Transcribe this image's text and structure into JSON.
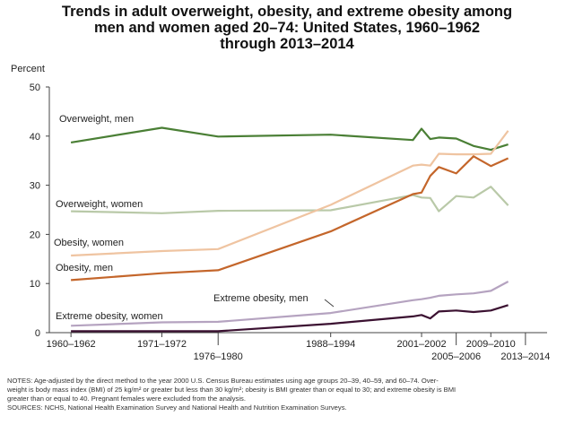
{
  "chart_data": {
    "type": "line",
    "title": [
      "Trends in adult overweight, obesity, and extreme obesity among",
      "men and women aged 20–74: United States, 1960–1962",
      "through 2013–2014"
    ],
    "ylabel": "Percent",
    "ylim": [
      0,
      50
    ],
    "yticks": [
      "0",
      "10",
      "20",
      "30",
      "40",
      "50"
    ],
    "grid": false,
    "x_labels": [
      {
        "label": "1960–1962",
        "x": 1961,
        "row": 0
      },
      {
        "label": "1971–1972",
        "x": 1971.5,
        "row": 0
      },
      {
        "label": "1976–1980",
        "x": 1978,
        "row": 1
      },
      {
        "label": "1988–1994",
        "x": 1991,
        "row": 0
      },
      {
        "label": "2001–2002",
        "x": 2001.5,
        "row": 0
      },
      {
        "label": "2005–2006",
        "x": 2005.5,
        "row": 1
      },
      {
        "label": "2009–2010",
        "x": 2009.5,
        "row": 0
      },
      {
        "label": "2013–2014",
        "x": 2013.5,
        "row": 1
      }
    ],
    "x": [
      1961,
      1971.5,
      1978,
      1991,
      2000.5,
      2001.5,
      2002.5,
      2003.5,
      2005.5,
      2007.5,
      2009.5,
      2011.5,
      2013.5
    ],
    "series": [
      {
        "name": "Overweight, men",
        "color": "#4a7f35",
        "values": [
          38.7,
          41.7,
          39.9,
          40.3,
          39.2,
          41.5,
          39.4,
          39.7,
          39.5,
          38.0,
          37.2,
          38.3,
          null
        ]
      },
      {
        "name": "Overweight, women",
        "color": "#b9c9a8",
        "values": [
          24.7,
          24.3,
          24.8,
          24.9,
          28.0,
          27.5,
          27.4,
          24.7,
          27.8,
          27.5,
          29.7,
          25.9,
          null
        ]
      },
      {
        "name": "Obesity, women",
        "color": "#efc4a1",
        "values": [
          15.7,
          16.6,
          17.0,
          26.0,
          34.0,
          34.2,
          34.0,
          36.4,
          36.3,
          36.3,
          36.4,
          41.1,
          null
        ]
      },
      {
        "name": "Obesity, men",
        "color": "#c4662b",
        "values": [
          10.7,
          12.1,
          12.7,
          20.6,
          28.2,
          28.5,
          31.9,
          33.7,
          32.4,
          35.9,
          33.9,
          35.5,
          null
        ]
      },
      {
        "name": "Extreme obesity, women",
        "color": "#b5a3c0",
        "values": [
          1.4,
          2.1,
          2.2,
          4.0,
          6.6,
          6.8,
          7.1,
          7.5,
          7.8,
          8.0,
          8.5,
          10.4,
          null
        ]
      },
      {
        "name": "Extreme obesity, men",
        "color": "#3b1131",
        "values": [
          0.3,
          0.3,
          0.3,
          1.8,
          3.3,
          3.6,
          2.9,
          4.3,
          4.5,
          4.2,
          4.5,
          5.6,
          null
        ]
      }
    ],
    "annotations": [
      {
        "text": "Overweight, men"
      },
      {
        "text": "Overweight, women"
      },
      {
        "text": "Obesity, women"
      },
      {
        "text": "Obesity, men"
      },
      {
        "text": "Extreme obesity, men"
      },
      {
        "text": "Extreme obesity, women"
      }
    ]
  },
  "notes": [
    "NOTES: Age-adjusted by the direct method to the year 2000 U.S. Census Bureau estimates using age groups 20–39, 40–59, and 60–74. Over-",
    "weight is body mass index (BMI) of 25 kg/m² or greater but less than 30 kg/m²; obesity is BMI greater than or equal to 30; and extreme obesity is BMI",
    "greater than or equal to 40. Pregnant females were excluded from the analysis.",
    "SOURCES: NCHS, National Health Examination Survey and National Health and Nutrition Examination Surveys."
  ]
}
